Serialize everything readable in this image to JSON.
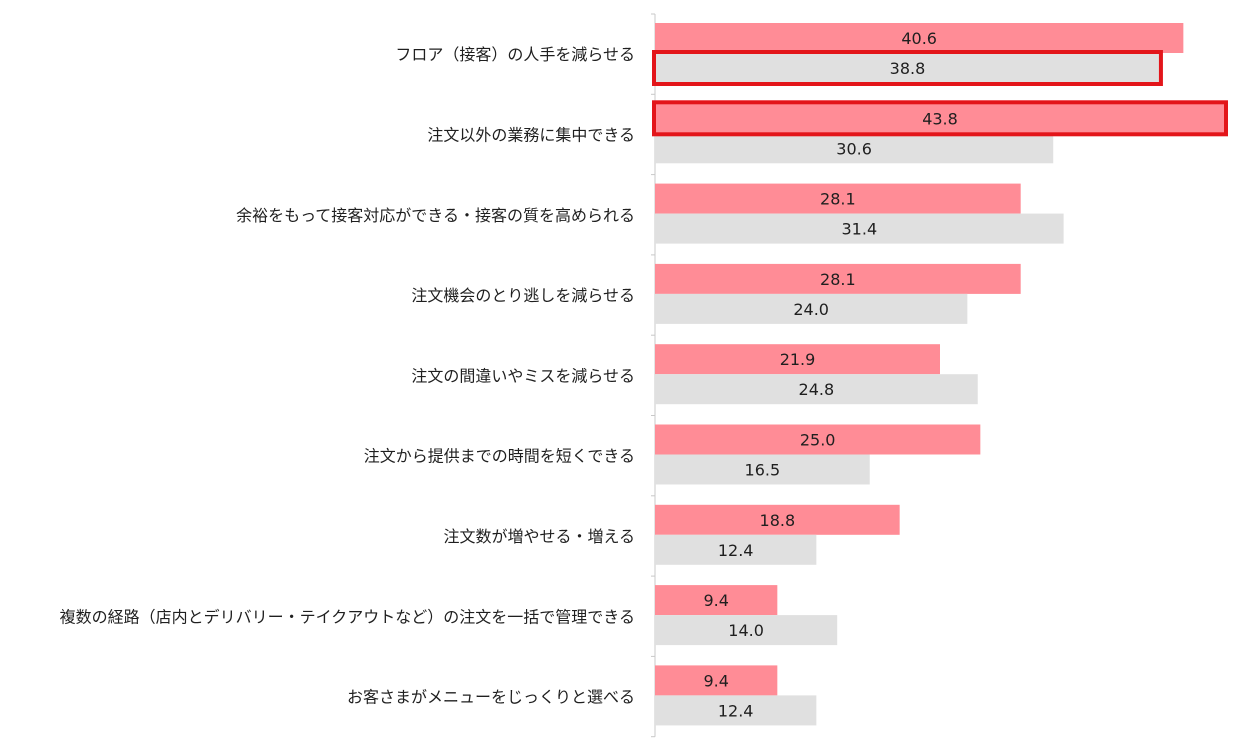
{
  "chart_data": {
    "type": "bar",
    "orientation": "horizontal",
    "categories": [
      "フロア（接客）の人手を減らせる",
      "注文以外の業務に集中できる",
      "余裕をもって接客対応ができる・接客の質を高められる",
      "注文機会のとり逃しを減らせる",
      "注文の間違いやミスを減らせる",
      "注文から提供までの時間を短くできる",
      "注文数が増やせる・増える",
      "複数の経路（店内とデリバリー・テイクアウトなど）の注文を一括で管理できる",
      "お客さまがメニューをじっくりと選べる"
    ],
    "series": [
      {
        "color": "#ff8c96",
        "values": [
          40.6,
          43.8,
          28.1,
          28.1,
          21.9,
          25.0,
          18.8,
          9.4,
          9.4
        ]
      },
      {
        "color": "#e0e0e0",
        "values": [
          38.8,
          30.6,
          31.4,
          24.0,
          24.8,
          16.5,
          12.4,
          14.0,
          12.4
        ]
      }
    ],
    "highlighted": [
      {
        "category_index": 0,
        "series_index": 1
      },
      {
        "category_index": 1,
        "series_index": 0
      }
    ],
    "highlight_color": "#e3151a",
    "xlim": [
      0,
      43.8
    ],
    "grid": false,
    "legend": "none"
  }
}
